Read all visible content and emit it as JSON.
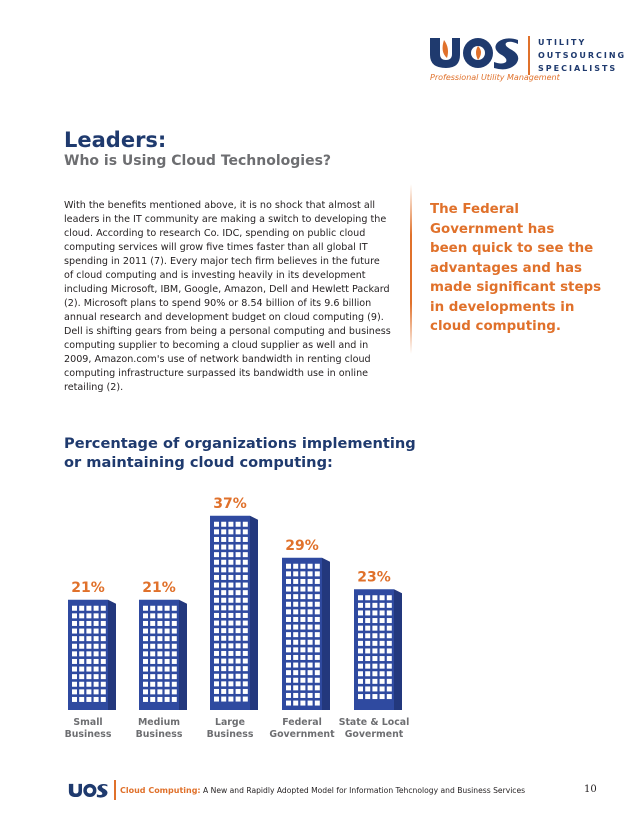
{
  "header": {
    "logo_lines": [
      "UTILITY",
      "OUTSOURCING",
      "SPECIALISTS"
    ],
    "tagline": "Professional Utility Management",
    "brand_colors": {
      "navy": "#1f3a6e",
      "orange": "#e0712b",
      "blue": "#2f4aa0"
    }
  },
  "title": "Leaders:",
  "subtitle": "Who is Using Cloud Technologies?",
  "body_lines": [
    "With the benefits mentioned above, it is no shock that almost all",
    "leaders in the IT community are making a switch to developing the",
    "cloud.  According to research Co. IDC, spending on public cloud",
    "computing services will grow five times faster than all  global IT",
    "spending in 2011 (7). Every major tech firm believes in the future",
    "of cloud computing and is investing heavily in its development",
    "including Microsoft, IBM, Google, Amazon, Dell and Hewlett Packard",
    "(2).   Microsoft plans to spend 90% or 8.54 billion of its 9.6 billion",
    "annual research and development budget on cloud computing (9).",
    "Dell is shifting gears from being a personal computing and business",
    "computing supplier to becoming a cloud supplier as well and in",
    "2009, Amazon.com's use of network bandwidth in renting cloud",
    "computing infrastructure surpassed  its bandwidth use in online",
    "retailing (2)."
  ],
  "pull_quote_lines": [
    "The Federal",
    "Government has",
    "been quick to see the",
    "advantages and has",
    "made significant steps",
    "in developments in",
    "cloud computing."
  ],
  "chart_title_lines": [
    "Percentage of organizations implementing",
    "or maintaining cloud computing:"
  ],
  "chart_data": {
    "type": "bar",
    "title": "Percentage of organizations implementing or maintaining cloud computing:",
    "categories": [
      [
        "Small",
        "Business"
      ],
      [
        "Medium",
        "Business"
      ],
      [
        "Large",
        "Business"
      ],
      [
        "Federal",
        "Government"
      ],
      [
        "State & Local",
        "Goverment"
      ]
    ],
    "values": [
      21,
      21,
      37,
      29,
      23
    ],
    "value_labels": [
      "21%",
      "21%",
      "37%",
      "29%",
      "23%"
    ],
    "ylim": [
      0,
      40
    ],
    "bar_color": "#2f4aa0",
    "label_color": "#e0712b",
    "grid": false
  },
  "footer": {
    "highlight": "Cloud Computing:",
    "text": " A New and Rapidly Adopted Model for Information Tehcnology and Business Services",
    "page_number": "10"
  }
}
